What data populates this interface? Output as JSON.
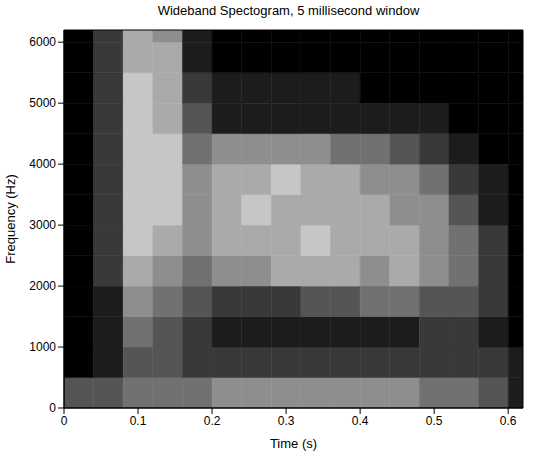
{
  "chart_data": {
    "type": "heatmap",
    "title": "Wideband Spectogram, 5 millisecond window",
    "x_label": "Time (s)",
    "y_label": "Frequency (Hz)",
    "xlim": [
      0,
      0.62
    ],
    "ylim": [
      0,
      6200
    ],
    "xticks": [
      0,
      0.1,
      0.2,
      0.3,
      0.4,
      0.5,
      0.6
    ],
    "yticks": [
      0,
      1000,
      2000,
      3000,
      4000,
      5000,
      6000
    ],
    "x_bins": [
      0,
      0.04,
      0.08,
      0.12,
      0.16,
      0.2,
      0.24,
      0.28,
      0.32,
      0.36,
      0.4,
      0.44,
      0.48,
      0.52,
      0.56,
      0.6,
      0.62
    ],
    "y_bins": [
      0,
      500,
      1000,
      1500,
      2000,
      2500,
      3000,
      3500,
      4000,
      4500,
      5000,
      5500,
      6000,
      6200
    ],
    "color_range": [
      0,
      9
    ],
    "cells": [
      [
        3,
        3,
        4,
        4,
        4,
        5,
        5,
        5,
        5,
        5,
        5,
        5,
        4,
        4,
        3,
        1
      ],
      [
        0,
        1,
        3,
        3,
        2,
        2,
        2,
        2,
        2,
        2,
        2,
        2,
        2,
        2,
        2,
        1
      ],
      [
        0,
        1,
        4,
        3,
        2,
        1,
        1,
        1,
        1,
        1,
        1,
        1,
        2,
        2,
        1,
        0
      ],
      [
        0,
        1,
        5,
        4,
        3,
        2,
        2,
        2,
        3,
        3,
        4,
        4,
        3,
        3,
        2,
        0
      ],
      [
        0,
        2,
        6,
        5,
        4,
        5,
        5,
        6,
        6,
        6,
        5,
        6,
        5,
        4,
        2,
        0
      ],
      [
        0,
        2,
        7,
        6,
        5,
        6,
        6,
        6,
        7,
        6,
        6,
        6,
        5,
        4,
        2,
        0
      ],
      [
        0,
        2,
        7,
        7,
        5,
        6,
        7,
        6,
        6,
        6,
        6,
        5,
        5,
        3,
        1,
        0
      ],
      [
        0,
        2,
        7,
        7,
        5,
        6,
        6,
        7,
        6,
        6,
        5,
        5,
        4,
        2,
        1,
        0
      ],
      [
        0,
        2,
        7,
        7,
        4,
        5,
        5,
        5,
        5,
        4,
        4,
        3,
        2,
        1,
        0,
        0
      ],
      [
        0,
        2,
        7,
        6,
        3,
        1,
        1,
        1,
        1,
        1,
        1,
        1,
        1,
        0,
        0,
        0
      ],
      [
        0,
        2,
        7,
        6,
        2,
        1,
        1,
        1,
        1,
        1,
        0,
        0,
        0,
        0,
        0,
        0
      ],
      [
        0,
        2,
        6,
        6,
        1,
        0,
        0,
        0,
        0,
        0,
        0,
        0,
        0,
        0,
        0,
        0
      ],
      [
        0,
        2,
        6,
        5,
        1,
        0,
        0,
        0,
        0,
        0,
        0,
        0,
        0,
        0,
        0,
        0
      ]
    ]
  }
}
